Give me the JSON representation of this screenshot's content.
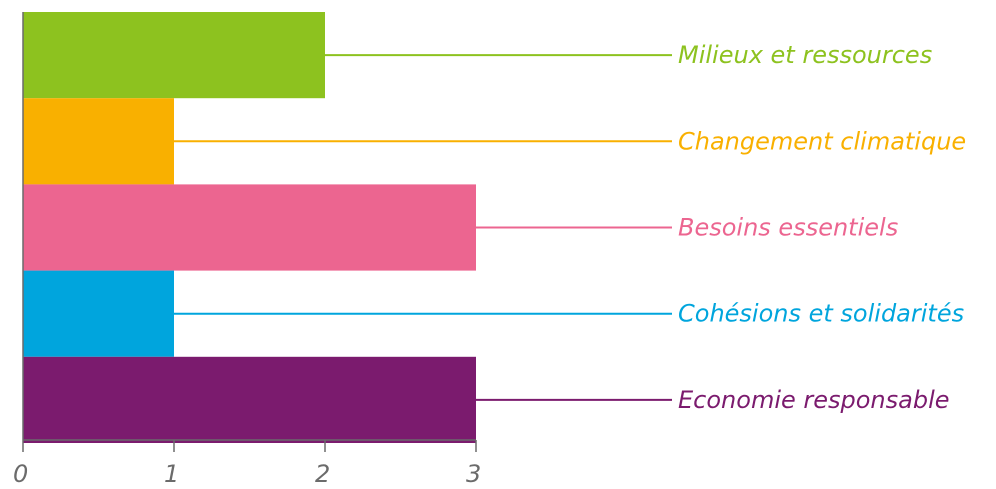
{
  "chart_data": {
    "type": "bar",
    "orientation": "horizontal",
    "categories": [
      "Milieux et ressources",
      "Changement climatique",
      "Besoins essentiels",
      "Cohésions et solidarités",
      "Economie responsable"
    ],
    "values": [
      2,
      1,
      3,
      1,
      3
    ],
    "colors": [
      "#8dc21f",
      "#f9b000",
      "#ec6590",
      "#00a5dd",
      "#7b1b6e"
    ],
    "xlim": [
      0,
      3
    ],
    "xticks": [
      "0",
      "1",
      "2",
      "3"
    ],
    "grid": false,
    "legend": "none"
  }
}
